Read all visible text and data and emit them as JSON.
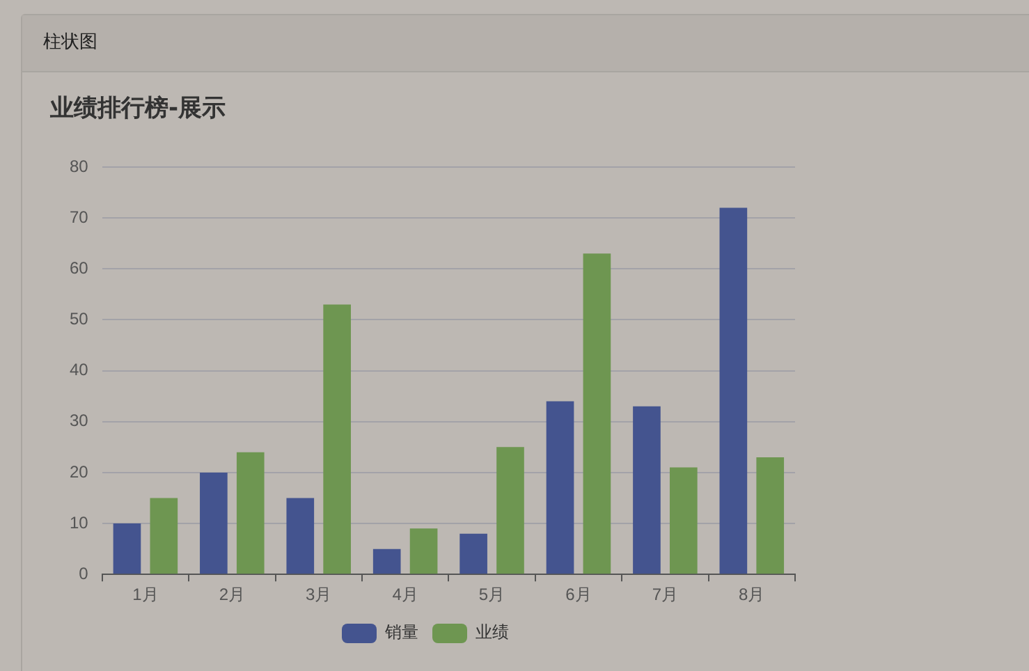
{
  "chart_data": {
    "type": "bar",
    "title": "业绩排行榜-展示",
    "annotations": [
      "柱状图"
    ],
    "categories": [
      "1月",
      "2月",
      "3月",
      "4月",
      "5月",
      "6月",
      "7月",
      "8月"
    ],
    "series": [
      {
        "name": "销量",
        "color": "#44548f",
        "values": [
          10,
          20,
          15,
          5,
          8,
          34,
          33,
          72
        ]
      },
      {
        "name": "业绩",
        "color": "#6e9651",
        "values": [
          15,
          24,
          53,
          9,
          25,
          63,
          21,
          23
        ]
      }
    ],
    "ylim": [
      0,
      80
    ],
    "yticks": [
      0,
      10,
      20,
      30,
      40,
      50,
      60,
      70,
      80
    ],
    "grid": "y",
    "legend": "bottom"
  }
}
